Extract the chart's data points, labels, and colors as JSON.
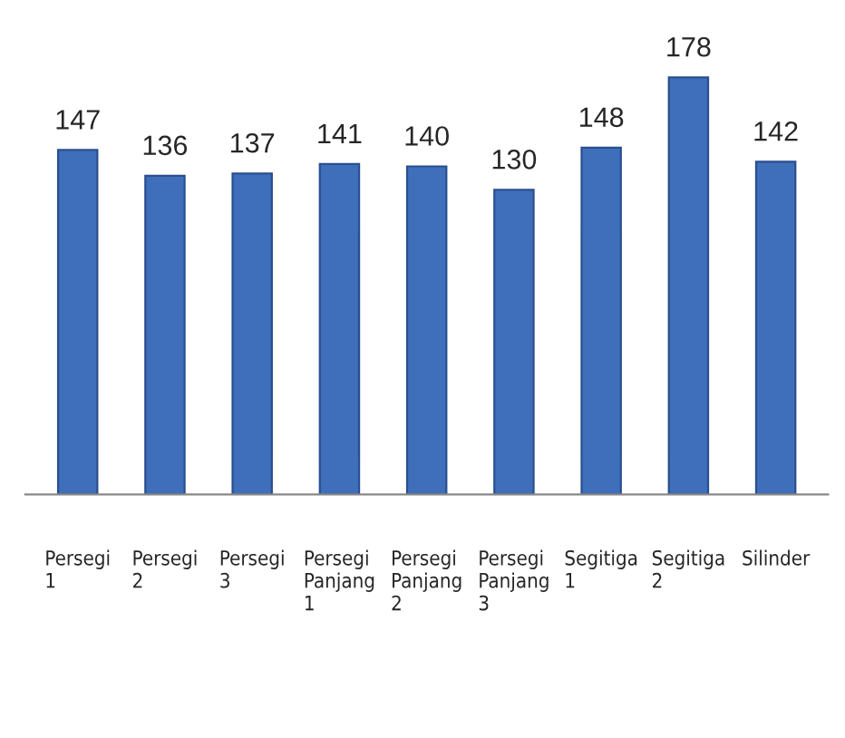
{
  "chart_data": {
    "type": "bar",
    "categories": [
      "Persegi\n1",
      "Persegi\n2",
      "Persegi\n3",
      "Persegi\nPanjang\n1",
      "Persegi\nPanjang\n2",
      "Persegi\nPanjang\n3",
      "Segitiga\n1",
      "Segitiga\n2",
      "Silinder"
    ],
    "values": [
      147,
      136,
      137,
      141,
      140,
      130,
      148,
      178,
      142
    ],
    "color": "#3f6fba",
    "data_labels": true,
    "grid": false,
    "legend": false
  }
}
